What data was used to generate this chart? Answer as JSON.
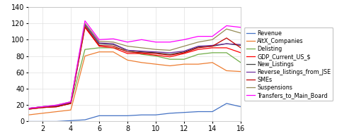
{
  "x": [
    1,
    2,
    3,
    4,
    5,
    6,
    7,
    8,
    9,
    10,
    11,
    12,
    13,
    14,
    15,
    16
  ],
  "series": {
    "Revenue": {
      "color": "#4472C4",
      "values": [
        0,
        0,
        0,
        1,
        2,
        7,
        7,
        7,
        8,
        8,
        10,
        11,
        12,
        12,
        22,
        18
      ]
    },
    "AltX_Companies": {
      "color": "#ED7D31",
      "values": [
        8,
        10,
        12,
        14,
        80,
        85,
        85,
        75,
        72,
        70,
        68,
        70,
        70,
        72,
        62,
        61
      ]
    },
    "Delisting": {
      "color": "#70AD47",
      "values": [
        15,
        17,
        18,
        22,
        88,
        90,
        90,
        87,
        82,
        80,
        76,
        76,
        82,
        84,
        84,
        72
      ]
    },
    "GDP_Current_US_$": {
      "color": "#FF0000",
      "values": [
        15,
        17,
        18,
        22,
        115,
        92,
        90,
        83,
        83,
        81,
        79,
        83,
        88,
        90,
        90,
        84
      ]
    },
    "New_Listings": {
      "color": "#404040",
      "values": [
        16,
        18,
        19,
        23,
        118,
        95,
        94,
        87,
        85,
        84,
        82,
        85,
        91,
        92,
        95,
        93
      ]
    },
    "Reverse_listings_from_JSE": {
      "color": "#7030A0",
      "values": [
        16,
        18,
        19,
        23,
        119,
        96,
        95,
        87,
        86,
        85,
        84,
        86,
        92,
        93,
        95,
        94
      ]
    },
    "SMEs": {
      "color": "#C00000",
      "values": [
        15,
        17,
        18,
        22,
        116,
        93,
        92,
        85,
        84,
        83,
        81,
        84,
        90,
        92,
        102,
        90
      ]
    },
    "Suspensions": {
      "color": "#948A54",
      "values": [
        16,
        18,
        20,
        24,
        120,
        98,
        97,
        92,
        90,
        88,
        87,
        92,
        97,
        100,
        113,
        108
      ]
    },
    "Transfers_to_Main_Board": {
      "color": "#FF00FF",
      "values": [
        16,
        18,
        20,
        24,
        123,
        100,
        101,
        97,
        100,
        97,
        97,
        100,
        104,
        104,
        117,
        115
      ]
    }
  },
  "xlim": [
    1,
    16
  ],
  "ylim": [
    0,
    140
  ],
  "yticks": [
    0,
    20,
    40,
    60,
    80,
    100,
    120,
    140
  ],
  "xticks": [
    2,
    4,
    6,
    8,
    10,
    12,
    14,
    16
  ],
  "legend_fontsize": 5.8,
  "axis_fontsize": 7,
  "background_color": "#ffffff",
  "grid_color": "#e0e0e0",
  "linewidth": 0.9
}
